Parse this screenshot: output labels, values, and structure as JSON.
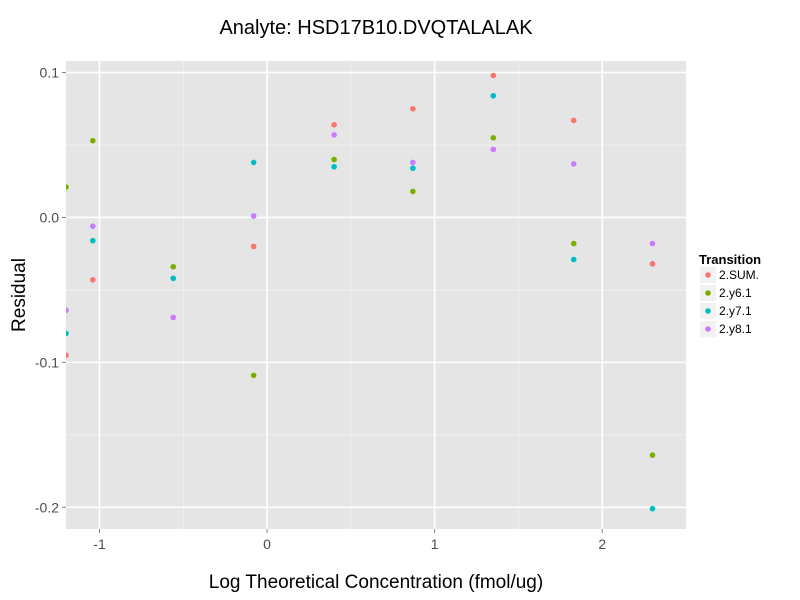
{
  "chart_data": {
    "type": "scatter",
    "title": "Analyte: HSD17B10.DVQTALALAK",
    "xlabel": "Log Theoretical Concentration (fmol/ug)",
    "ylabel": "Residual",
    "xlim": [
      -1.2,
      2.5
    ],
    "ylim": [
      -0.215,
      0.108
    ],
    "x_ticks": [
      -1,
      0,
      1,
      2
    ],
    "x_tick_labels": [
      "-1",
      "0",
      "1",
      "2"
    ],
    "y_ticks": [
      0.1,
      0.0,
      -0.1,
      -0.2
    ],
    "y_tick_labels": [
      "0.1",
      "0.0",
      "-0.1",
      "-0.2"
    ],
    "grid": true,
    "legend": {
      "title": "Transition",
      "position": "right"
    },
    "series": [
      {
        "name": "2.SUM.",
        "color": "#F8766D",
        "x": [
          -1.2,
          -1.04,
          -0.08,
          0.4,
          0.87,
          1.35,
          1.83,
          2.3
        ],
        "y": [
          -0.095,
          -0.043,
          -0.02,
          0.064,
          0.075,
          0.098,
          0.067,
          -0.032
        ]
      },
      {
        "name": "2.y6.1",
        "color": "#7CAE00",
        "x": [
          -1.2,
          -1.04,
          -0.56,
          -0.08,
          0.4,
          0.87,
          1.35,
          1.83,
          2.3
        ],
        "y": [
          0.021,
          0.053,
          -0.034,
          -0.109,
          0.04,
          0.018,
          0.055,
          -0.018,
          -0.164
        ]
      },
      {
        "name": "2.y7.1",
        "color": "#00BFC4",
        "x": [
          -1.2,
          -1.04,
          -0.56,
          -0.08,
          0.4,
          0.87,
          1.35,
          1.83,
          2.3
        ],
        "y": [
          -0.08,
          -0.016,
          -0.042,
          0.038,
          0.035,
          0.034,
          0.084,
          -0.029,
          -0.201
        ]
      },
      {
        "name": "2.y8.1",
        "color": "#C77CFF",
        "x": [
          -1.2,
          -1.04,
          -0.56,
          -0.08,
          0.4,
          0.87,
          1.35,
          1.83,
          2.3
        ],
        "y": [
          -0.064,
          -0.006,
          -0.069,
          0.001,
          0.057,
          0.038,
          0.047,
          0.037,
          -0.018
        ]
      }
    ]
  }
}
